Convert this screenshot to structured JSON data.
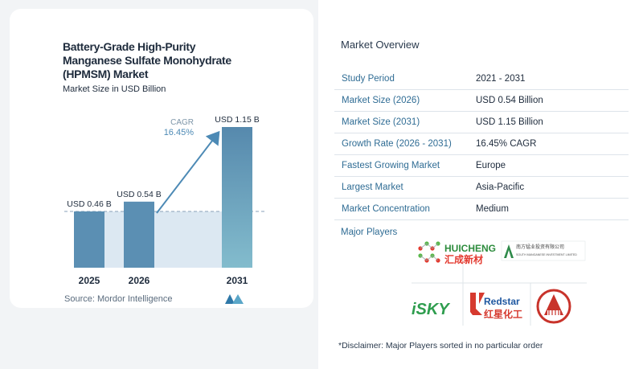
{
  "chart": {
    "title": "Battery-Grade High-Purity Manganese Sulfate Monohydrate (HPMSM) Market",
    "subtitle": "Market Size in USD Billion",
    "source": "Source: Mordor Intelligence",
    "cagr_label": "CAGR",
    "cagr_value": "16.45%"
  },
  "chart_data": {
    "type": "bar",
    "categories": [
      "2025",
      "2026",
      "2031"
    ],
    "values": [
      0.46,
      0.54,
      1.15
    ],
    "data_labels": [
      "USD 0.46 B",
      "USD 0.54 B",
      "USD 1.15 B"
    ],
    "title": "Battery-Grade High-Purity Manganese Sulfate Monohydrate (HPMSM) Market",
    "ylabel": "Market Size in USD Billion",
    "ylim": [
      0,
      1.15
    ],
    "grid": false,
    "annotation": "CAGR 16.45%"
  },
  "overview": {
    "title": "Market Overview",
    "rows": [
      {
        "key": "Study Period",
        "value": "2021 - 2031"
      },
      {
        "key": "Market Size (2026)",
        "value": "USD 0.54 Billion"
      },
      {
        "key": "Market Size (2031)",
        "value": "USD 1.15 Billion"
      },
      {
        "key": "Growth Rate (2026 - 2031)",
        "value": "16.45% CAGR"
      },
      {
        "key": "Fastest Growing Market",
        "value": "Europe"
      },
      {
        "key": "Largest Market",
        "value": "Asia-Pacific"
      },
      {
        "key": "Market Concentration",
        "value": "Medium"
      }
    ],
    "players_label": "Major Players",
    "disclaimer": "*Disclaimer: Major Players sorted in no particular order"
  },
  "players": {
    "huicheng": {
      "en": "HUICHENG",
      "cn": "汇成新材"
    },
    "south_manganese": {
      "cn": "南方锰业投资有限公司",
      "en": "SOUTH MANGANESE INVESTMENT LIMITED"
    },
    "isky": {
      "text": "iSKY"
    },
    "redstar": {
      "en": "Redstar",
      "cn": "红星化工"
    }
  },
  "colors": {
    "bar_dark": "#5b8fb3",
    "bar_light": "#7fb4c9",
    "shade": "#dce8f2",
    "accent": "#4d8ab5"
  }
}
